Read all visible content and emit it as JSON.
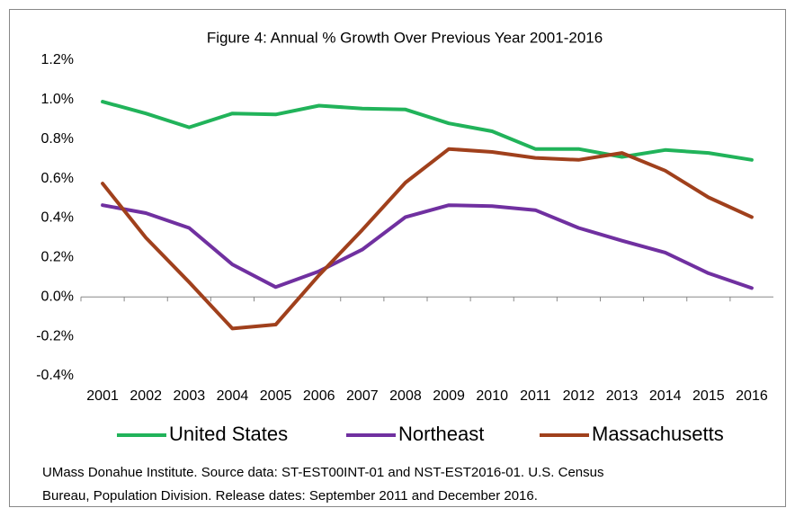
{
  "chart_data": {
    "type": "line",
    "title": "Figure 4: Annual % Growth Over Previous Year 2001-2016",
    "categories": [
      "2001",
      "2002",
      "2003",
      "2004",
      "2005",
      "2006",
      "2007",
      "2008",
      "2009",
      "2010",
      "2011",
      "2012",
      "2013",
      "2014",
      "2015",
      "2016"
    ],
    "series": [
      {
        "name": "United States",
        "color": "#21b35a",
        "values": [
          0.99,
          0.93,
          0.86,
          0.93,
          0.925,
          0.97,
          0.955,
          0.95,
          0.88,
          0.84,
          0.75,
          0.75,
          0.71,
          0.745,
          0.73,
          0.695
        ]
      },
      {
        "name": "Northeast",
        "color": "#7030a0",
        "values": [
          0.465,
          0.425,
          0.35,
          0.165,
          0.05,
          0.13,
          0.24,
          0.405,
          0.465,
          0.46,
          0.44,
          0.35,
          0.285,
          0.225,
          0.12,
          0.045
        ]
      },
      {
        "name": "Massachusetts",
        "color": "#a0401c",
        "values": [
          0.575,
          0.3,
          0.075,
          -0.16,
          -0.14,
          0.11,
          0.34,
          0.58,
          0.75,
          0.735,
          0.705,
          0.695,
          0.73,
          0.64,
          0.505,
          0.405
        ]
      }
    ],
    "ylim": [
      -0.4,
      1.2
    ],
    "yticks": [
      {
        "value": -0.4,
        "label": "-0.4%"
      },
      {
        "value": -0.2,
        "label": "-0.2%"
      },
      {
        "value": 0,
        "label": "0.0%"
      },
      {
        "value": 0.2,
        "label": "0.2%"
      },
      {
        "value": 0.4,
        "label": "0.4%"
      },
      {
        "value": 0.6,
        "label": "0.6%"
      },
      {
        "value": 0.8,
        "label": "0.8%"
      },
      {
        "value": 1.0,
        "label": "1.0%"
      },
      {
        "value": 1.2,
        "label": "1.2%"
      }
    ],
    "grid": false,
    "legend": "bottom",
    "note": [
      "UMass Donahue Institute. Source data: ST-EST00INT-01 and NST-EST2016-01. U.S. Census",
      "Bureau, Population Division. Release dates: September 2011 and December 2016."
    ]
  }
}
